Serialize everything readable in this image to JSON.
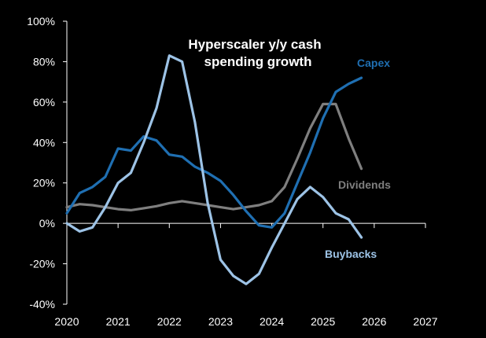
{
  "chart_data": {
    "type": "line",
    "title_lines": [
      "Hyperscaler y/y cash",
      "spending growth"
    ],
    "xlabel": "",
    "ylabel": "",
    "xlim": [
      2020,
      2027
    ],
    "ylim": [
      -40,
      100
    ],
    "x_ticks": [
      2020,
      2021,
      2022,
      2023,
      2024,
      2025,
      2026,
      2027
    ],
    "y_ticks": [
      -40,
      -20,
      0,
      20,
      40,
      60,
      80,
      100
    ],
    "y_tick_labels": [
      "-40%",
      "-20%",
      "0%",
      "20%",
      "40%",
      "60%",
      "80%",
      "100%"
    ],
    "grid": false,
    "series": [
      {
        "name": "Capex",
        "color": "#1f6fb2",
        "x": [
          2020.0,
          2020.25,
          2020.5,
          2020.75,
          2021.0,
          2021.25,
          2021.5,
          2021.75,
          2022.0,
          2022.25,
          2022.5,
          2022.75,
          2023.0,
          2023.25,
          2023.5,
          2023.75,
          2024.0,
          2024.25,
          2024.5,
          2024.75,
          2025.0,
          2025.25,
          2025.5,
          2025.75
        ],
        "values": [
          5,
          15,
          18,
          23,
          37,
          36,
          43,
          41,
          34,
          33,
          28,
          25,
          21,
          14,
          6,
          -1,
          -2,
          5,
          20,
          35,
          52,
          65,
          69,
          72
        ]
      },
      {
        "name": "Dividends",
        "color": "#7f7f7f",
        "x": [
          2020.0,
          2020.25,
          2020.5,
          2020.75,
          2021.0,
          2021.25,
          2021.5,
          2021.75,
          2022.0,
          2022.25,
          2022.5,
          2022.75,
          2023.0,
          2023.25,
          2023.5,
          2023.75,
          2024.0,
          2024.25,
          2024.5,
          2024.75,
          2025.0,
          2025.25,
          2025.5,
          2025.75
        ],
        "values": [
          8,
          9.5,
          9,
          8,
          7,
          6.5,
          7.5,
          8.5,
          10,
          11,
          10,
          9,
          8,
          7,
          8,
          9,
          11,
          18,
          32,
          47,
          59,
          59,
          42,
          27
        ]
      },
      {
        "name": "Buybacks",
        "color": "#9dc3e6",
        "x": [
          2020.0,
          2020.25,
          2020.5,
          2020.75,
          2021.0,
          2021.25,
          2021.5,
          2021.75,
          2022.0,
          2022.25,
          2022.5,
          2022.75,
          2023.0,
          2023.25,
          2023.5,
          2023.75,
          2024.0,
          2024.25,
          2024.5,
          2024.75,
          2025.0,
          2025.25,
          2025.5,
          2025.75
        ],
        "values": [
          0,
          -4,
          -2,
          8,
          20,
          25,
          40,
          57,
          83,
          80,
          50,
          10,
          -18,
          -26,
          -30,
          -25,
          -12,
          0,
          12,
          18,
          13,
          5,
          2,
          -7
        ]
      }
    ],
    "series_labels": [
      {
        "text": "Capex",
        "color": "#1f6fb2"
      },
      {
        "text": "Dividends",
        "color": "#7f7f7f"
      },
      {
        "text": "Buybacks",
        "color": "#9dc3e6"
      }
    ]
  }
}
